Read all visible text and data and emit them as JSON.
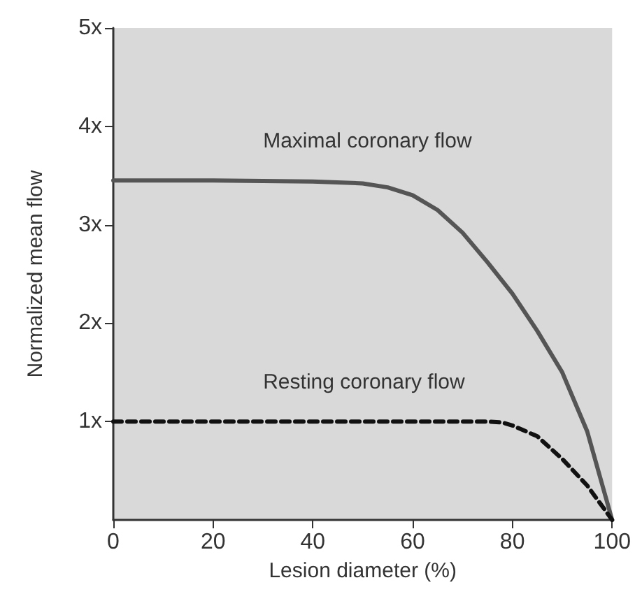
{
  "chart_data": {
    "type": "line",
    "xlabel": "Lesion diameter (%)",
    "ylabel": "Normalized mean flow",
    "xlim": [
      0,
      100
    ],
    "xticks": [
      0,
      20,
      40,
      60,
      80,
      100
    ],
    "ylim": [
      0,
      5
    ],
    "yticks": [
      {
        "value": 1,
        "label": "1x"
      },
      {
        "value": 2,
        "label": "2x"
      },
      {
        "value": 3,
        "label": "3x"
      },
      {
        "value": 4,
        "label": "4x"
      },
      {
        "value": 5,
        "label": "5x"
      }
    ],
    "grid": false,
    "marker": "none",
    "series": [
      {
        "name": "Maximal coronary flow",
        "color": "#555555",
        "line_style": "solid",
        "x": [
          0,
          20,
          40,
          50,
          55,
          60,
          65,
          70,
          75,
          80,
          85,
          90,
          95,
          100
        ],
        "values": [
          3.45,
          3.45,
          3.44,
          3.42,
          3.38,
          3.3,
          3.15,
          2.92,
          2.62,
          2.3,
          1.92,
          1.5,
          0.9,
          0
        ]
      },
      {
        "name": "Resting coronary flow",
        "color": "#111111",
        "line_style": "dashed",
        "x": [
          0,
          20,
          40,
          60,
          75,
          78,
          80,
          85,
          90,
          95,
          100
        ],
        "values": [
          1,
          1,
          1,
          1,
          1,
          0.99,
          0.96,
          0.85,
          0.62,
          0.35,
          0
        ]
      }
    ]
  }
}
